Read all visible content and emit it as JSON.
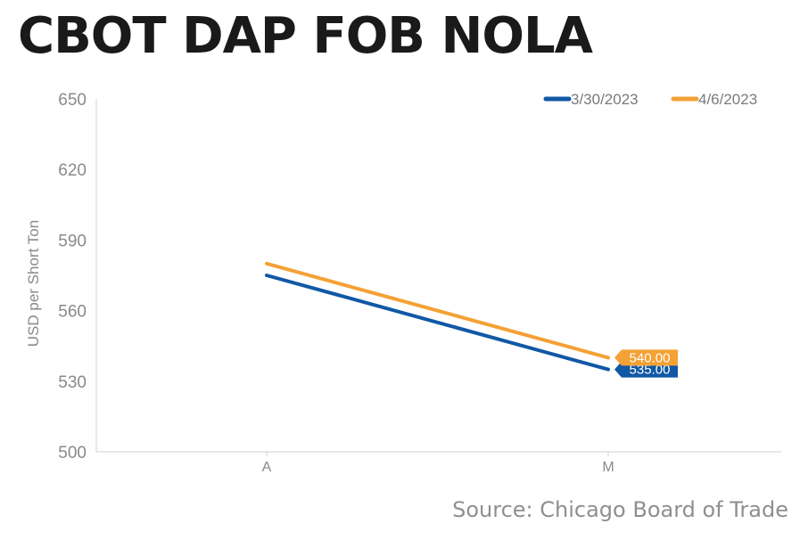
{
  "title": "CBOT DAP FOB NOLA",
  "source": "Source: Chicago Board of Trade",
  "chart_data": {
    "type": "line",
    "title": "CBOT DAP FOB NOLA",
    "xlabel": "",
    "ylabel": "USD per Short Ton",
    "categories": [
      "A",
      "M"
    ],
    "ylim": [
      500,
      650
    ],
    "yticks": [
      500,
      530,
      560,
      590,
      620,
      650
    ],
    "grid": false,
    "legend_position": "top-right",
    "series": [
      {
        "name": "3/30/2023",
        "color": "#1158A5",
        "values": [
          575,
          535
        ],
        "end_label": "535.00"
      },
      {
        "name": "4/6/2023",
        "color": "#F4A135",
        "values": [
          580,
          540
        ],
        "end_label": "540.00"
      }
    ]
  }
}
